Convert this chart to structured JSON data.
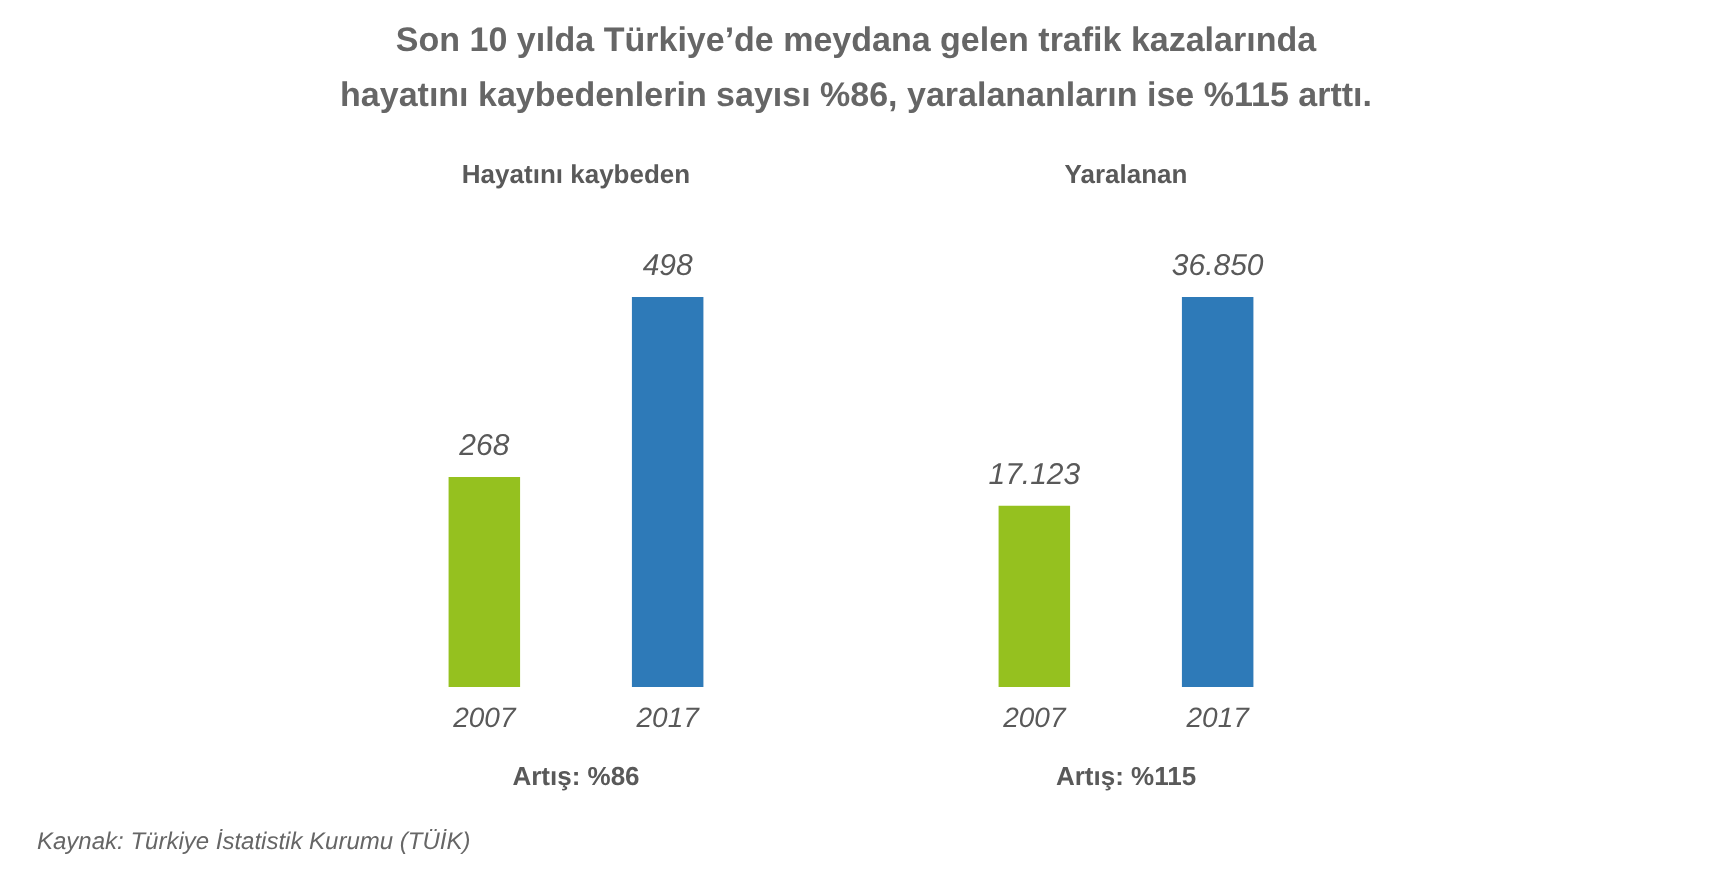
{
  "chart_data": [
    {
      "type": "other",
      "title": "Son 10 yılda Türkiye’de meydana gelen trafik kazalarında\nhayatını kaybedenlerin sayısı %86, yaralananların ise %115 arttı.",
      "annotations": [
        "Kaynak: Türkiye İstatistik Kurumu (TÜİK)"
      ]
    },
    {
      "type": "bar",
      "title": "Hayatını kaybeden",
      "categories": [
        "2007",
        "2017"
      ],
      "values": [
        268,
        498
      ],
      "colors": [
        "#95c11f",
        "#2e7ab8"
      ],
      "data_labels": true,
      "annotations": [
        "Artış: %86"
      ]
    },
    {
      "type": "bar",
      "title": "Yaralanan",
      "categories": [
        "2007",
        "2017"
      ],
      "values": [
        17123,
        36850
      ],
      "colors": [
        "#95c11f",
        "#2e7ab8"
      ],
      "value_labels": [
        "17.123",
        "36.850"
      ],
      "annotations": [
        "Artış: %115"
      ]
    }
  ]
}
